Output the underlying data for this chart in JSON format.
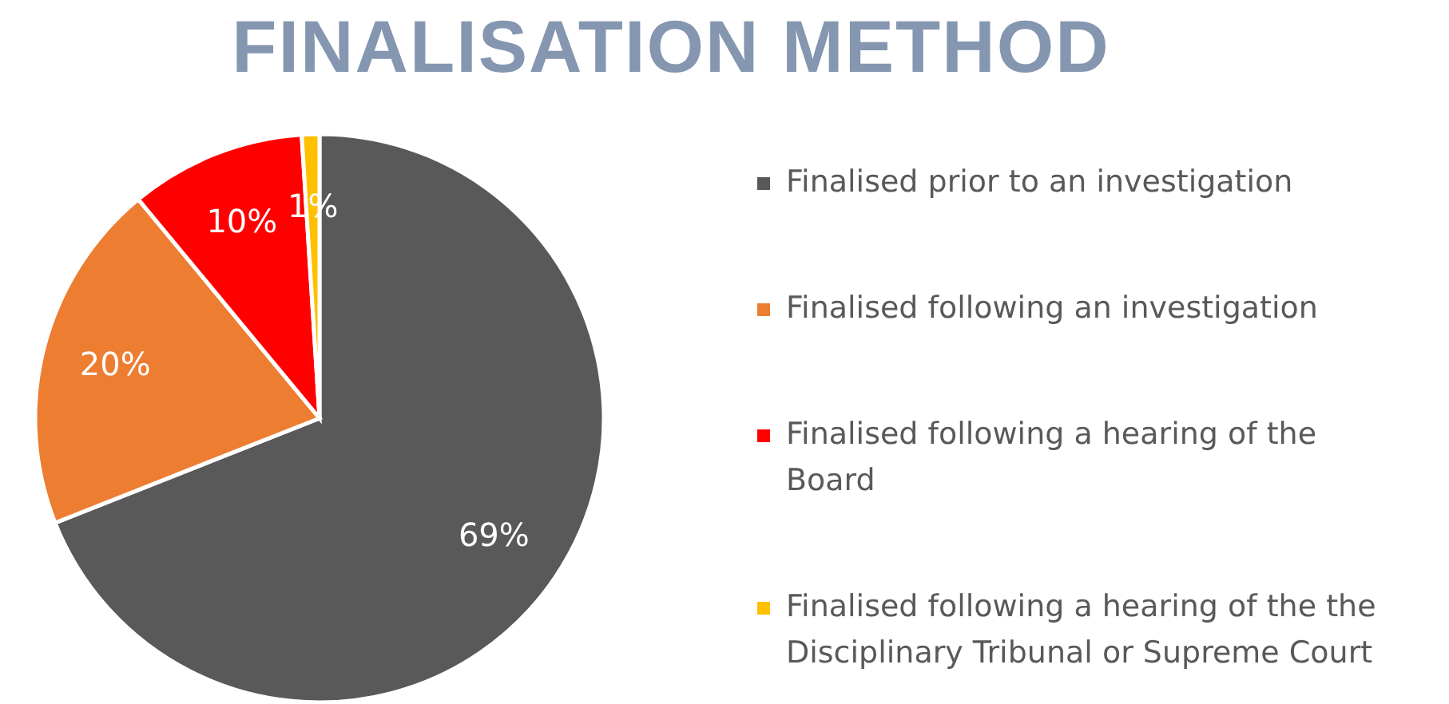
{
  "chart_data": {
    "type": "pie",
    "title": "FINALISATION METHOD",
    "categories": [
      "Finalised prior to an investigation",
      "Finalised following an investigation",
      "Finalised following a hearing of the Board",
      "Finalised following a hearing of the the Disciplinary Tribunal or Supreme Court"
    ],
    "values": [
      69,
      20,
      10,
      1
    ],
    "colors": [
      "#595959",
      "#ed7d31",
      "#ff0000",
      "#ffc000"
    ],
    "value_labels": [
      "69%",
      "20%",
      "10%",
      "1%"
    ],
    "legend": "right"
  }
}
